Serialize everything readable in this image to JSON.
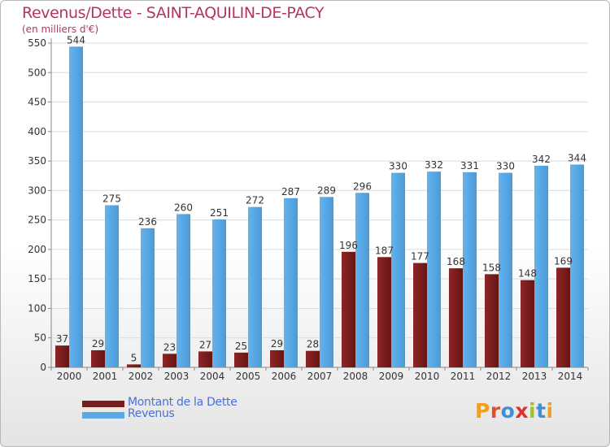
{
  "header": {
    "title": "Revenus/Dette - SAINT-AQUILIN-DE-PACY",
    "subtitle": "(en milliers d'€)"
  },
  "logo": {
    "text": "Proxiti",
    "letter_colors": [
      "#f0a020",
      "#e05030",
      "#3d8fd8",
      "#e03030",
      "#a0c030",
      "#3d8fd8",
      "#f0a020"
    ]
  },
  "colors": {
    "dette": "#7a1c1c",
    "revenus": "#5aa9e6",
    "title": "#b5336b",
    "legend_text": "#4a6fd8"
  },
  "chart_data": {
    "type": "bar",
    "categories": [
      "2000",
      "2001",
      "2002",
      "2003",
      "2004",
      "2005",
      "2006",
      "2007",
      "2008",
      "2009",
      "2010",
      "2011",
      "2012",
      "2013",
      "2014"
    ],
    "series": [
      {
        "name": "Montant de la Dette",
        "values": [
          37,
          29,
          5,
          23,
          27,
          25,
          29,
          28,
          196,
          187,
          177,
          168,
          158,
          148,
          169
        ]
      },
      {
        "name": "Revenus",
        "values": [
          544,
          275,
          236,
          260,
          251,
          272,
          287,
          289,
          296,
          330,
          332,
          331,
          330,
          342,
          344
        ]
      }
    ],
    "ylim": [
      0,
      550
    ],
    "yticks": [
      0,
      50,
      100,
      150,
      200,
      250,
      300,
      350,
      400,
      450,
      500,
      550
    ],
    "grid": true,
    "legend_position": "bottom-left"
  }
}
